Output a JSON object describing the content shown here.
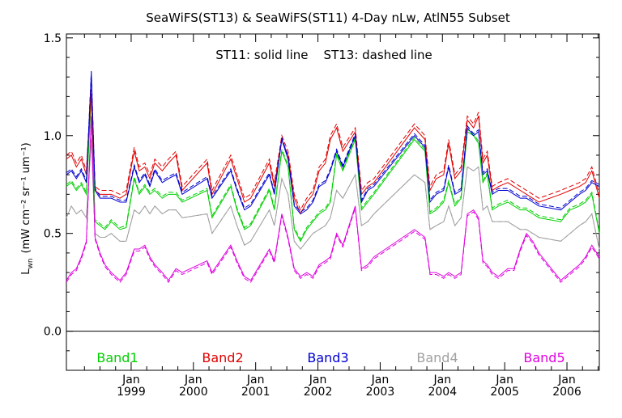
{
  "chart_data": {
    "type": "line",
    "title": "SeaWiFS(ST13) & SeaWiFS(ST11) 4-Day nLw, AtlN55 Subset",
    "annotation": "ST11: solid line    ST13: dashed line",
    "ylabel": "L",
    "ylabel_sub": "wn",
    "ylabel_units": "(mW cm⁻² sr⁻¹ um⁻¹)",
    "ylim": [
      -0.2,
      1.52
    ],
    "yticks": [
      0.0,
      0.5,
      1.0,
      1.5
    ],
    "ytick_labels": [
      "0.0",
      "0.5",
      "1.0",
      "1.5"
    ],
    "xlim": [
      1997.96,
      2006.52
    ],
    "xticks": [
      {
        "x": 1999.0,
        "month": "Jan",
        "year": "1999"
      },
      {
        "x": 2000.0,
        "month": "Jan",
        "year": "2000"
      },
      {
        "x": 2001.0,
        "month": "Jan",
        "year": "2001"
      },
      {
        "x": 2002.0,
        "month": "Jan",
        "year": "2002"
      },
      {
        "x": 2003.0,
        "month": "Jan",
        "year": "2003"
      },
      {
        "x": 2004.0,
        "month": "Jan",
        "year": "2004"
      },
      {
        "x": 2005.0,
        "month": "Jan",
        "year": "2005"
      },
      {
        "x": 2006.0,
        "month": "Jan",
        "year": "2006"
      }
    ],
    "zero_line": 0.0,
    "grid": false,
    "x": [
      1997.96,
      1998.04,
      1998.12,
      1998.2,
      1998.28,
      1998.36,
      1998.42,
      1998.5,
      1998.58,
      1998.68,
      1998.82,
      1998.92,
      1999.05,
      1999.13,
      1999.22,
      1999.3,
      1999.38,
      1999.5,
      1999.6,
      1999.72,
      1999.82,
      2000.22,
      2000.3,
      2000.6,
      2000.7,
      2000.82,
      2000.92,
      2001.22,
      2001.3,
      2001.42,
      2001.52,
      2001.62,
      2001.72,
      2001.82,
      2001.92,
      2002.02,
      2002.12,
      2002.2,
      2002.3,
      2002.4,
      2002.6,
      2002.7,
      2002.8,
      2002.9,
      2003.55,
      2003.72,
      2003.8,
      2003.9,
      2004.02,
      2004.1,
      2004.2,
      2004.3,
      2004.4,
      2004.5,
      2004.58,
      2004.65,
      2004.72,
      2004.8,
      2004.9,
      2005.05,
      2005.15,
      2005.25,
      2005.35,
      2005.45,
      2005.55,
      2005.9,
      2006.05,
      2006.2,
      2006.3,
      2006.4,
      2006.52
    ],
    "series": [
      {
        "name": "Band1",
        "color": "#00d000",
        "values": [
          0.74,
          0.76,
          0.72,
          0.75,
          0.7,
          1.2,
          0.56,
          0.54,
          0.52,
          0.56,
          0.52,
          0.53,
          0.78,
          0.7,
          0.74,
          0.7,
          0.72,
          0.68,
          0.7,
          0.7,
          0.66,
          0.72,
          0.58,
          0.74,
          0.62,
          0.52,
          0.54,
          0.72,
          0.62,
          0.92,
          0.84,
          0.52,
          0.46,
          0.52,
          0.56,
          0.6,
          0.62,
          0.66,
          0.9,
          0.82,
          0.98,
          0.62,
          0.66,
          0.7,
          0.98,
          0.92,
          0.6,
          0.62,
          0.66,
          0.76,
          0.64,
          0.68,
          1.02,
          1.0,
          0.96,
          0.76,
          0.8,
          0.62,
          0.64,
          0.66,
          0.64,
          0.62,
          0.62,
          0.6,
          0.58,
          0.56,
          0.62,
          0.64,
          0.66,
          0.7,
          0.5
        ]
      },
      {
        "name": "Band2",
        "color": "#e00000",
        "values": [
          0.88,
          0.9,
          0.84,
          0.88,
          0.8,
          1.22,
          0.72,
          0.7,
          0.7,
          0.7,
          0.68,
          0.7,
          0.92,
          0.82,
          0.84,
          0.78,
          0.86,
          0.82,
          0.86,
          0.9,
          0.72,
          0.86,
          0.7,
          0.88,
          0.78,
          0.66,
          0.68,
          0.86,
          0.74,
          0.98,
          0.9,
          0.68,
          0.6,
          0.66,
          0.7,
          0.82,
          0.86,
          0.98,
          1.04,
          0.92,
          1.02,
          0.7,
          0.74,
          0.76,
          1.04,
          0.98,
          0.72,
          0.78,
          0.8,
          0.96,
          0.78,
          0.82,
          1.08,
          1.04,
          1.1,
          0.86,
          0.9,
          0.72,
          0.74,
          0.76,
          0.74,
          0.72,
          0.7,
          0.68,
          0.66,
          0.7,
          0.72,
          0.74,
          0.76,
          0.82,
          0.68
        ]
      },
      {
        "name": "Band3",
        "color": "#0000d0",
        "values": [
          0.8,
          0.82,
          0.78,
          0.82,
          0.76,
          1.32,
          0.72,
          0.68,
          0.68,
          0.68,
          0.66,
          0.66,
          0.84,
          0.76,
          0.8,
          0.74,
          0.82,
          0.76,
          0.78,
          0.8,
          0.7,
          0.78,
          0.68,
          0.82,
          0.72,
          0.62,
          0.64,
          0.8,
          0.7,
          0.98,
          0.88,
          0.64,
          0.6,
          0.62,
          0.66,
          0.74,
          0.76,
          0.82,
          0.92,
          0.84,
          1.0,
          0.66,
          0.72,
          0.74,
          1.0,
          0.94,
          0.66,
          0.7,
          0.72,
          0.84,
          0.7,
          0.72,
          1.04,
          1.0,
          1.02,
          0.8,
          0.82,
          0.7,
          0.72,
          0.72,
          0.7,
          0.68,
          0.68,
          0.66,
          0.64,
          0.62,
          0.66,
          0.7,
          0.72,
          0.76,
          0.74
        ]
      },
      {
        "name": "Band4",
        "color": "#a0a0a0",
        "values": [
          0.58,
          0.64,
          0.6,
          0.62,
          0.58,
          0.98,
          0.5,
          0.48,
          0.48,
          0.5,
          0.46,
          0.46,
          0.62,
          0.6,
          0.64,
          0.6,
          0.64,
          0.6,
          0.62,
          0.62,
          0.58,
          0.6,
          0.5,
          0.64,
          0.54,
          0.44,
          0.46,
          0.62,
          0.54,
          0.78,
          0.7,
          0.46,
          0.42,
          0.46,
          0.5,
          0.52,
          0.54,
          0.58,
          0.72,
          0.68,
          0.8,
          0.54,
          0.56,
          0.6,
          0.8,
          0.76,
          0.52,
          0.54,
          0.56,
          0.64,
          0.54,
          0.58,
          0.84,
          0.82,
          0.84,
          0.62,
          0.64,
          0.56,
          0.56,
          0.56,
          0.54,
          0.52,
          0.52,
          0.5,
          0.48,
          0.46,
          0.5,
          0.54,
          0.56,
          0.6,
          0.42
        ]
      },
      {
        "name": "Band5",
        "color": "#e000e0",
        "values": [
          0.26,
          0.3,
          0.32,
          0.38,
          0.46,
          1.1,
          0.48,
          0.4,
          0.34,
          0.3,
          0.26,
          0.3,
          0.42,
          0.42,
          0.44,
          0.38,
          0.34,
          0.3,
          0.26,
          0.32,
          0.3,
          0.36,
          0.3,
          0.44,
          0.36,
          0.28,
          0.26,
          0.42,
          0.36,
          0.6,
          0.48,
          0.32,
          0.28,
          0.3,
          0.28,
          0.34,
          0.36,
          0.38,
          0.5,
          0.44,
          0.64,
          0.32,
          0.34,
          0.38,
          0.52,
          0.48,
          0.3,
          0.3,
          0.28,
          0.3,
          0.28,
          0.3,
          0.6,
          0.62,
          0.58,
          0.36,
          0.34,
          0.3,
          0.28,
          0.32,
          0.32,
          0.42,
          0.5,
          0.46,
          0.4,
          0.26,
          0.3,
          0.34,
          0.38,
          0.44,
          0.38
        ]
      }
    ],
    "series_dashed_delta": [
      0.01,
      0.02,
      0.01,
      0.0,
      -0.01
    ],
    "legend": [
      "Band1",
      "Band2",
      "Band3",
      "Band4",
      "Band5"
    ],
    "legend_placement": "bottom inside plot"
  }
}
